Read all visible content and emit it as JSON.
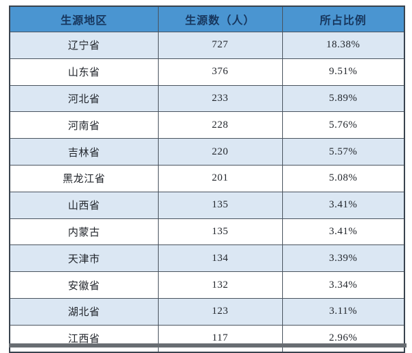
{
  "chart_data": {
    "type": "table",
    "columns": [
      "生源地区",
      "生源数（人）",
      "所占比例"
    ],
    "rows": [
      [
        "辽宁省",
        "727",
        "18.38%"
      ],
      [
        "山东省",
        "376",
        "9.51%"
      ],
      [
        "河北省",
        "233",
        "5.89%"
      ],
      [
        "河南省",
        "228",
        "5.76%"
      ],
      [
        "吉林省",
        "220",
        "5.57%"
      ],
      [
        "黑龙江省",
        "201",
        "5.08%"
      ],
      [
        "山西省",
        "135",
        "3.41%"
      ],
      [
        "内蒙古",
        "135",
        "3.41%"
      ],
      [
        "天津市",
        "134",
        "3.39%"
      ],
      [
        "安徽省",
        "132",
        "3.34%"
      ],
      [
        "湖北省",
        "123",
        "3.11%"
      ],
      [
        "江西省",
        "117",
        "2.96%"
      ]
    ]
  },
  "colors": {
    "header_bg": "#4a95d1",
    "header_text": "#17365d",
    "row_alt_bg": "#dbe7f3",
    "row_bg": "#ffffff",
    "border_inner": "#49535e",
    "border_outer": "#39434e",
    "body_text": "#22262c",
    "bottom_bar": "#686d72",
    "page_bg": "#ffffff"
  }
}
